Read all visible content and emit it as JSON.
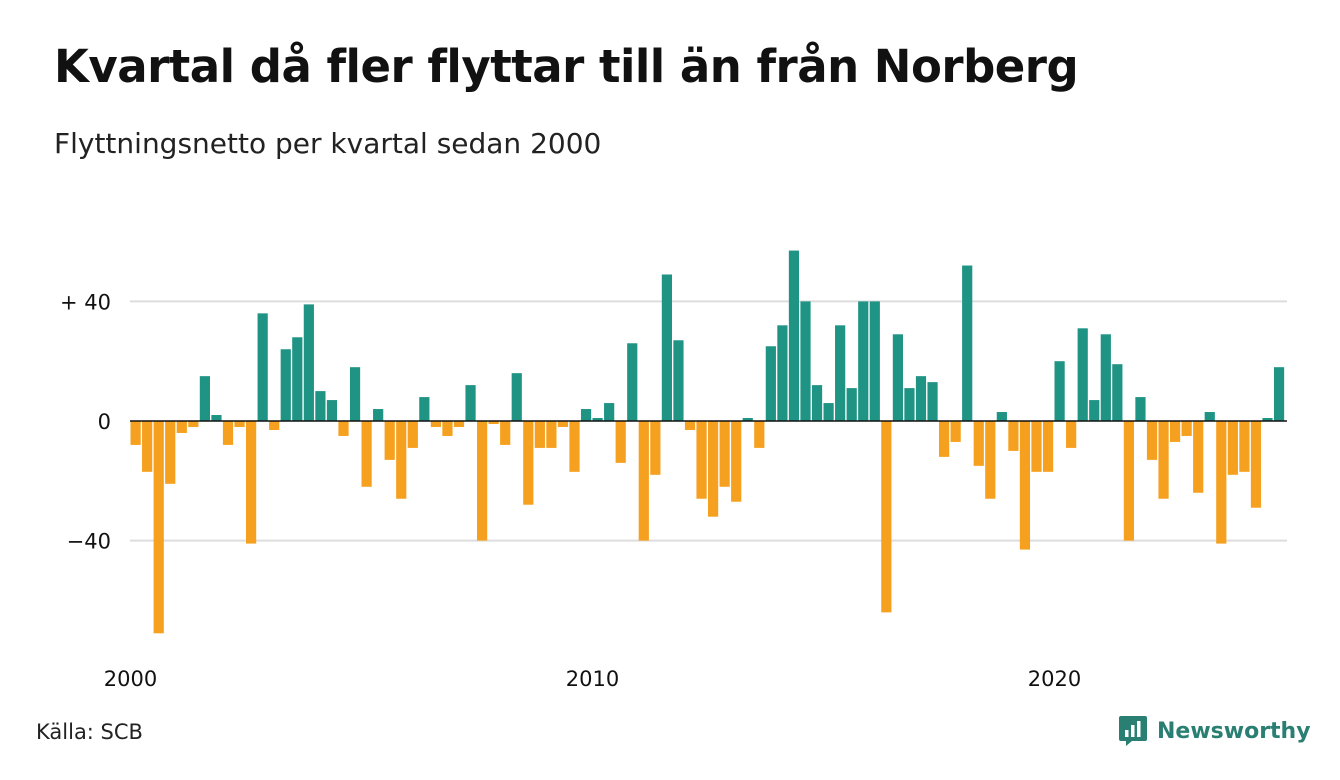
{
  "title": "Kvartal då fler flyttar till än från Norberg",
  "subtitle": "Flyttningsnetto per kvartal sedan 2000",
  "source": "Källa: SCB",
  "brand": {
    "name": "Newsworthy",
    "icon": "newsworthy-logo-icon"
  },
  "colors": {
    "positive": "#1f9484",
    "negative": "#f5a01e",
    "grid": "#dddddd",
    "zero": "#111111"
  },
  "chart_data": {
    "type": "bar",
    "title": "Kvartal då fler flyttar till än från Norberg",
    "subtitle": "Flyttningsnetto per kvartal sedan 2000",
    "xlabel": "",
    "ylabel": "",
    "x_start": "2000 Q1",
    "period": "quarter",
    "ylim": [
      -72,
      60
    ],
    "y_ticks": [
      {
        "value": 40,
        "label": "+ 40"
      },
      {
        "value": 0,
        "label": "0"
      },
      {
        "value": -40,
        "label": "−40"
      }
    ],
    "x_ticks": [
      {
        "index": 0,
        "label": "2000"
      },
      {
        "index": 40,
        "label": "2010"
      },
      {
        "index": 80,
        "label": "2020"
      }
    ],
    "grid": true,
    "values": [
      -8,
      -17,
      -71,
      -21,
      -4,
      -2,
      15,
      2,
      -8,
      -2,
      -41,
      36,
      -3,
      24,
      28,
      39,
      10,
      7,
      -5,
      18,
      -22,
      4,
      -13,
      -26,
      -9,
      8,
      -2,
      -5,
      -2,
      12,
      -40,
      -1,
      -8,
      16,
      -28,
      -9,
      -9,
      -2,
      -17,
      4,
      1,
      6,
      -14,
      26,
      -40,
      -18,
      49,
      27,
      -3,
      -26,
      -32,
      -22,
      -27,
      1,
      -9,
      25,
      32,
      57,
      40,
      12,
      6,
      32,
      11,
      40,
      40,
      -64,
      29,
      11,
      15,
      13,
      -12,
      -7,
      52,
      -15,
      -26,
      3,
      -10,
      -43,
      -17,
      -17,
      20,
      -9,
      31,
      7,
      29,
      19,
      -40,
      8,
      -13,
      -26,
      -7,
      -5,
      -24,
      3,
      -41,
      -18,
      -17,
      -29,
      1,
      18
    ]
  }
}
